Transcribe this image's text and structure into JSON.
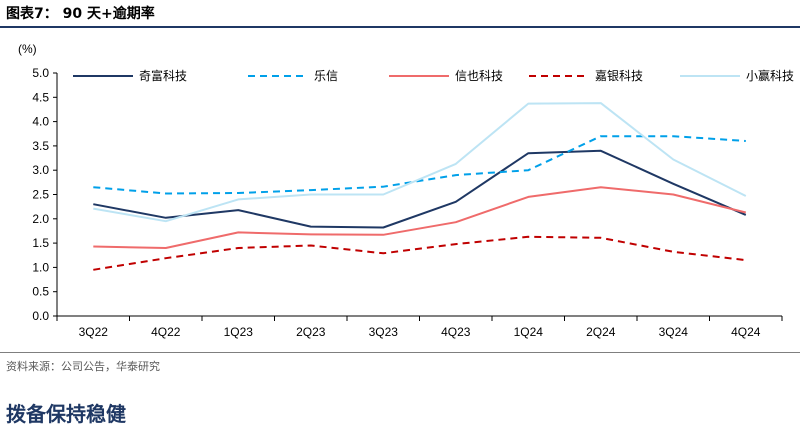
{
  "figure": {
    "title": "图表7：  90 天+逾期率",
    "source": "资料来源：公司公告，华泰研究",
    "section_heading": "拨备保持稳健"
  },
  "chart_data": {
    "type": "line",
    "ylabel": "(%)",
    "ylim": [
      0,
      5
    ],
    "y_ticks": [
      "0.0",
      "0.5",
      "1.0",
      "1.5",
      "2.0",
      "2.5",
      "3.0",
      "3.5",
      "4.0",
      "4.5",
      "5.0"
    ],
    "categories": [
      "3Q22",
      "4Q22",
      "1Q23",
      "2Q23",
      "3Q23",
      "4Q23",
      "1Q24",
      "2Q24",
      "3Q24",
      "4Q24"
    ],
    "legend_position": "top",
    "series": [
      {
        "name": "奇富科技",
        "color": "#1f3864",
        "dash": "solid",
        "values": [
          2.3,
          2.02,
          2.18,
          1.84,
          1.82,
          2.35,
          3.35,
          3.4,
          2.72,
          2.08
        ]
      },
      {
        "name": "乐信",
        "color": "#00a0e9",
        "dash": "dashed",
        "values": [
          2.65,
          2.52,
          2.53,
          2.59,
          2.66,
          2.9,
          3.0,
          3.7,
          3.7,
          3.6
        ]
      },
      {
        "name": "信也科技",
        "color": "#ef6b6b",
        "dash": "solid",
        "values": [
          1.43,
          1.4,
          1.72,
          1.68,
          1.67,
          1.93,
          2.45,
          2.65,
          2.5,
          2.13
        ]
      },
      {
        "name": "嘉银科技",
        "color": "#c00000",
        "dash": "dashed",
        "values": [
          0.95,
          1.19,
          1.4,
          1.45,
          1.29,
          1.48,
          1.63,
          1.61,
          1.32,
          1.15
        ]
      },
      {
        "name": "小赢科技",
        "color": "#bde4f4",
        "dash": "solid",
        "values": [
          2.21,
          1.95,
          2.4,
          2.5,
          2.5,
          3.13,
          4.37,
          4.38,
          3.22,
          2.47
        ]
      }
    ]
  }
}
